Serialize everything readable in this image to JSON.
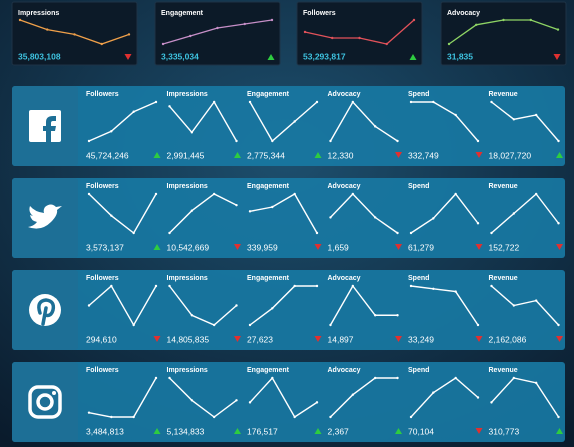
{
  "summary": [
    {
      "title": "Impressions",
      "value": "35,803,108",
      "trend": "down",
      "color": "#f0a04a",
      "values": [
        8,
        6,
        5,
        3,
        5
      ]
    },
    {
      "title": "Engagement",
      "value": "3,335,034",
      "trend": "up",
      "color": "#c78fc8",
      "values": [
        2,
        4,
        6,
        7,
        8
      ]
    },
    {
      "title": "Followers",
      "value": "53,293,817",
      "trend": "up",
      "color": "#e2525a",
      "values": [
        6,
        5,
        5,
        4,
        8
      ]
    },
    {
      "title": "Advocacy",
      "value": "31,835",
      "trend": "down",
      "color": "#8ed464",
      "values": [
        2,
        6,
        7,
        7,
        5
      ]
    }
  ],
  "platforms": [
    {
      "icon": "facebook",
      "metrics": [
        {
          "title": "Followers",
          "value": "45,724,246",
          "trend": "up",
          "values": [
            1,
            3,
            7,
            9
          ]
        },
        {
          "title": "Impressions",
          "value": "2,991,445",
          "trend": "up",
          "values": [
            8,
            2,
            9,
            0
          ]
        },
        {
          "title": "Engagement",
          "value": "2,775,344",
          "trend": "up",
          "values": [
            9,
            1,
            5,
            9
          ]
        },
        {
          "title": "Advocacy",
          "value": "12,330",
          "trend": "down",
          "values": [
            1,
            9,
            4,
            1
          ]
        },
        {
          "title": "Spend",
          "value": "332,749",
          "trend": "down",
          "values": [
            9,
            9,
            6,
            0
          ]
        },
        {
          "title": "Revenue",
          "value": "18,027,720",
          "trend": "up",
          "values": [
            9,
            5,
            6,
            0
          ]
        }
      ]
    },
    {
      "icon": "twitter",
      "metrics": [
        {
          "title": "Followers",
          "value": "3,573,137",
          "trend": "up",
          "values": [
            9,
            4,
            0,
            9
          ]
        },
        {
          "title": "Impressions",
          "value": "10,542,669",
          "trend": "down",
          "values": [
            2,
            6,
            9,
            7
          ]
        },
        {
          "title": "Engagement",
          "value": "339,959",
          "trend": "down",
          "values": [
            5,
            6,
            9,
            0
          ]
        },
        {
          "title": "Advocacy",
          "value": "1,659",
          "trend": "down",
          "values": [
            6,
            9,
            6,
            4
          ]
        },
        {
          "title": "Spend",
          "value": "61,279",
          "trend": "down",
          "values": [
            1,
            4,
            9,
            3
          ]
        },
        {
          "title": "Revenue",
          "value": "152,722",
          "trend": "down",
          "values": [
            1,
            5,
            9,
            3
          ]
        }
      ]
    },
    {
      "icon": "pinterest",
      "metrics": [
        {
          "title": "Followers",
          "value": "294,610",
          "trend": "down",
          "values": [
            5,
            9,
            1,
            9
          ]
        },
        {
          "title": "Impressions",
          "value": "14,805,835",
          "trend": "down",
          "values": [
            9,
            3,
            1,
            5
          ]
        },
        {
          "title": "Engagement",
          "value": "27,623",
          "trend": "down",
          "values": [
            2,
            5,
            9,
            9
          ]
        },
        {
          "title": "Advocacy",
          "value": "14,897",
          "trend": "down",
          "values": [
            5,
            9,
            6,
            6
          ]
        },
        {
          "title": "Spend",
          "value": "33,249",
          "trend": "down",
          "values": [
            9,
            8.5,
            8,
            2
          ]
        },
        {
          "title": "Revenue",
          "value": "2,162,086",
          "trend": "down",
          "values": [
            9,
            5,
            6,
            1
          ]
        }
      ]
    },
    {
      "icon": "instagram",
      "metrics": [
        {
          "title": "Followers",
          "value": "3,484,813",
          "trend": "up",
          "values": [
            1,
            0,
            0,
            9
          ]
        },
        {
          "title": "Impressions",
          "value": "5,134,833",
          "trend": "up",
          "values": [
            8,
            4,
            1,
            4
          ]
        },
        {
          "title": "Engagement",
          "value": "176,517",
          "trend": "up",
          "values": [
            4,
            9,
            1,
            4
          ]
        },
        {
          "title": "Advocacy",
          "value": "2,367",
          "trend": "up",
          "values": [
            2,
            6,
            9,
            9
          ]
        },
        {
          "title": "Spend",
          "value": "70,104",
          "trend": "down",
          "values": [
            1,
            6,
            9,
            5
          ]
        },
        {
          "title": "Revenue",
          "value": "310,773",
          "trend": "up",
          "values": [
            4,
            9,
            8,
            1
          ]
        }
      ]
    }
  ]
}
